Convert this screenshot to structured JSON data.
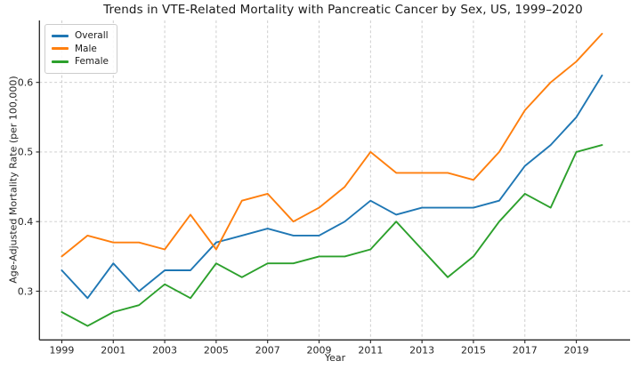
{
  "chart_data": {
    "type": "line",
    "title": "Trends in VTE-Related Mortality with Pancreatic Cancer by Sex, US, 1999–2020",
    "xlabel": "Year",
    "ylabel": "Age-Adjusted Mortality Rate (per 100,000)",
    "x": [
      1999,
      2000,
      2001,
      2002,
      2003,
      2004,
      2005,
      2006,
      2007,
      2008,
      2009,
      2010,
      2011,
      2012,
      2013,
      2014,
      2015,
      2016,
      2017,
      2018,
      2019,
      2020
    ],
    "series": [
      {
        "name": "Overall",
        "color": "#1f77b4",
        "values": [
          0.33,
          0.29,
          0.34,
          0.3,
          0.33,
          0.33,
          0.37,
          0.38,
          0.39,
          0.38,
          0.38,
          0.4,
          0.43,
          0.41,
          0.42,
          0.42,
          0.42,
          0.43,
          0.48,
          0.51,
          0.55,
          0.61
        ]
      },
      {
        "name": "Male",
        "color": "#ff7f0e",
        "values": [
          0.35,
          0.38,
          0.37,
          0.37,
          0.36,
          0.41,
          0.36,
          0.43,
          0.44,
          0.4,
          0.42,
          0.45,
          0.5,
          0.47,
          0.47,
          0.47,
          0.46,
          0.5,
          0.56,
          0.6,
          0.63,
          0.67
        ]
      },
      {
        "name": "Female",
        "color": "#2ca02c",
        "values": [
          0.27,
          0.25,
          0.27,
          0.28,
          0.31,
          0.29,
          0.34,
          0.32,
          0.34,
          0.34,
          0.35,
          0.35,
          0.36,
          0.4,
          0.36,
          0.32,
          0.35,
          0.4,
          0.44,
          0.42,
          0.5,
          0.51
        ]
      }
    ],
    "xticks": [
      1999,
      2001,
      2003,
      2005,
      2007,
      2009,
      2011,
      2013,
      2015,
      2017,
      2019
    ],
    "yticks": [
      0.3,
      0.4,
      0.5,
      0.6
    ],
    "xlim": [
      1998.13,
      2021.09
    ],
    "ylim": [
      0.23,
      0.689
    ],
    "grid": true,
    "legend_position": "upper left",
    "colors": {
      "grid": "#c9c9c9",
      "spine": "#262626",
      "tick_label": "#262626",
      "title_text": "#1a1a1a"
    }
  }
}
